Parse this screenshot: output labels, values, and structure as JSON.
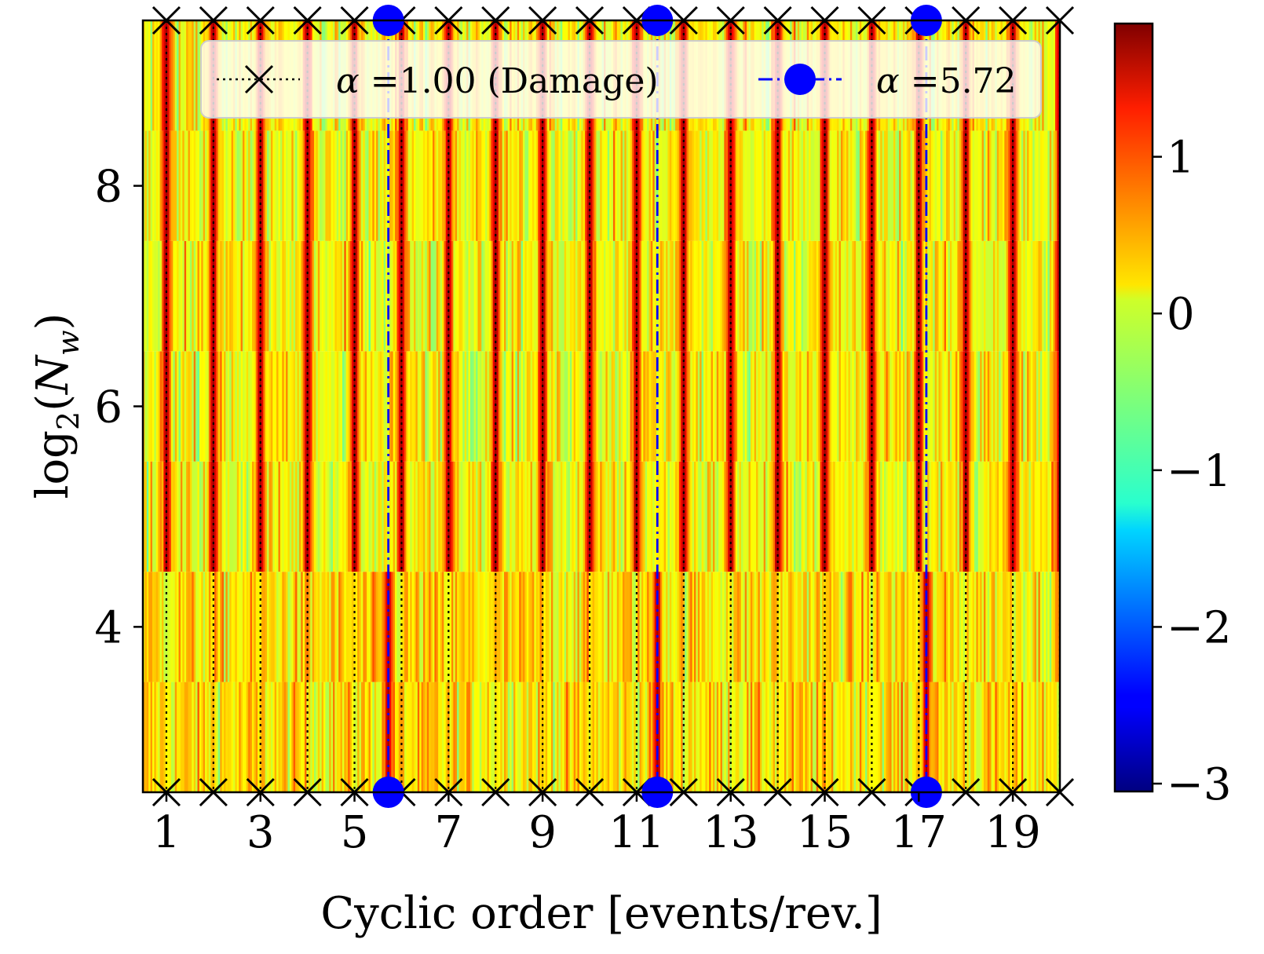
{
  "chart_data": {
    "type": "heatmap",
    "title": "",
    "xlabel": "Cyclic order [events/rev.]",
    "ylabel": "log2(Nw)",
    "ylabel_parts": {
      "func": "log",
      "sub": "2",
      "open": "(",
      "var": "N",
      "var_sub": "w",
      "close": ")"
    },
    "xlim": [
      0.5,
      20.0
    ],
    "ylim": [
      2.5,
      9.5
    ],
    "x_ticks": [
      1,
      3,
      5,
      7,
      9,
      11,
      13,
      15,
      17,
      19
    ],
    "x_tick_labels": [
      "1",
      "3",
      "5",
      "7",
      "9",
      "11",
      "13",
      "15",
      "17",
      "19"
    ],
    "y_ticks": [
      4,
      6,
      8
    ],
    "y_tick_labels": [
      "4",
      "6",
      "8"
    ],
    "rows": [
      3,
      4,
      5,
      6,
      7,
      8,
      9
    ],
    "colorbar": {
      "colormap": "jet",
      "range": [
        -3.05,
        1.85
      ],
      "ticks": [
        -3,
        -2,
        -1,
        0,
        1
      ],
      "tick_labels": [
        "−3",
        "−2",
        "−1",
        "0",
        "1"
      ]
    },
    "peak_value": 1.7,
    "background_value": 0.0,
    "series": [
      {
        "name": "α =1.00 (Damage)",
        "label_prefix": "α",
        "label_rest": " =1.00 (Damage)",
        "alpha": 1.0,
        "color": "#000000",
        "marker": "x",
        "linestyle": "dotted",
        "x": [
          1,
          2,
          3,
          4,
          5,
          6,
          7,
          8,
          9,
          10,
          11,
          12,
          13,
          14,
          15,
          16,
          17,
          18,
          19,
          20
        ]
      },
      {
        "name": "α =5.72",
        "label_prefix": "α",
        "label_rest": " =5.72",
        "alpha": 5.72,
        "color": "#0000ff",
        "marker": "o",
        "linestyle": "dashdot",
        "x": [
          5.72,
          11.44,
          17.16
        ]
      }
    ],
    "legend_location": "top"
  }
}
